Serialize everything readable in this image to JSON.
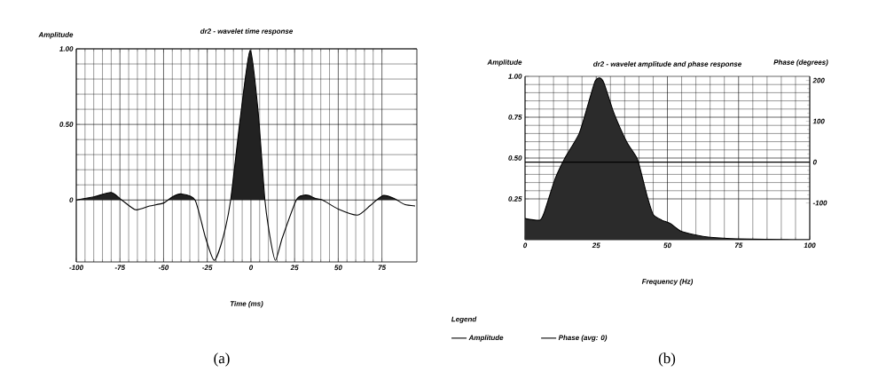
{
  "chart_data": [
    {
      "type": "area",
      "title": "dr2 - wavelet time response",
      "xlabel": "Time (ms)",
      "ylabel": "Amplitude",
      "annotations": [
        "(a)"
      ],
      "x": [
        -100,
        -90,
        -80,
        -74,
        -66,
        -58,
        -50,
        -45,
        -40,
        -32,
        -26,
        -21,
        -16,
        -11.6,
        -6,
        -0.5,
        4,
        8,
        11,
        14,
        18,
        26,
        30,
        33,
        37,
        41,
        50,
        61,
        68,
        72,
        76,
        82,
        88,
        94
      ],
      "values": [
        0,
        0.02,
        0.05,
        0,
        -0.065,
        -0.04,
        -0.02,
        0.02,
        0.04,
        0,
        -0.25,
        -0.4,
        -0.25,
        0,
        0.55,
        0.99,
        0.6,
        0,
        -0.25,
        -0.4,
        -0.25,
        0,
        0.03,
        0.03,
        0.01,
        0,
        -0.06,
        -0.1,
        -0.04,
        0,
        0.03,
        0.01,
        -0.03,
        -0.04
      ],
      "color": "#222222",
      "xlim": [
        -100,
        95
      ],
      "ylim": [
        -0.41,
        1
      ],
      "xticks": [
        -100,
        -75,
        -50,
        -25,
        0,
        25,
        50,
        75
      ],
      "yticks": [
        0,
        {
          "value": 0.5,
          "label": "0.50"
        },
        {
          "value": 1,
          "label": "1.00"
        }
      ],
      "grid": true,
      "marker": "none"
    },
    {
      "type": "area",
      "title": "dr2 - wavelet amplitude and phase response",
      "xlabel": "Frequency (Hz)",
      "ylabel": "Amplitude",
      "y2label": "Phase (degrees)",
      "legend_title": "Legend",
      "legend": "bottom",
      "annotations": [
        "(b)"
      ],
      "x": [
        0,
        5.2,
        6.8,
        10.5,
        14,
        19,
        22.5,
        24.6,
        26.2,
        27.7,
        30.9,
        33.5,
        36,
        39.3,
        40.8,
        43,
        45,
        48,
        51,
        54.5,
        59.7,
        65,
        75,
        94,
        100
      ],
      "series": [
        {
          "name": "Amplitude",
          "color": "#2b2b2b",
          "values": [
            0.13,
            0.12,
            0.17,
            0.37,
            0.5,
            0.65,
            0.85,
            0.97,
            0.99,
            0.96,
            0.79,
            0.68,
            0.59,
            0.5,
            0.41,
            0.26,
            0.155,
            0.12,
            0.1,
            0.055,
            0.03,
            0.015,
            0.005,
            0,
            0
          ]
        },
        {
          "name": "Phase (avg: 0)",
          "type": "line",
          "axis": "y2",
          "color": "#000000",
          "x": [
            0,
            100
          ],
          "values": [
            0,
            0
          ]
        }
      ],
      "xlim": [
        0,
        100
      ],
      "ylim": [
        0,
        1
      ],
      "y2lim": [
        -190,
        210
      ],
      "xticks": [
        0,
        25,
        50,
        75,
        100
      ],
      "yticks": [
        {
          "value": 0.25,
          "label": "0.25"
        },
        {
          "value": 0.5,
          "label": "0.50"
        },
        {
          "value": 0.75,
          "label": "0.75"
        },
        {
          "value": 1,
          "label": "1.00"
        }
      ],
      "y2ticks": [
        -100,
        0,
        100,
        200
      ],
      "grid": true,
      "marker": "none"
    }
  ]
}
